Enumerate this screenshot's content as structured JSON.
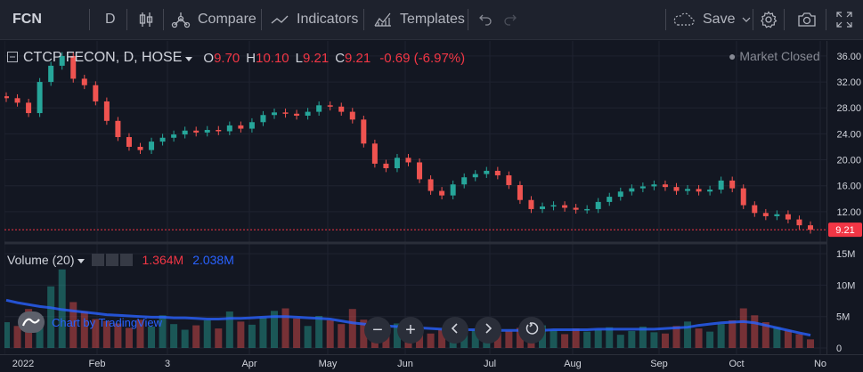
{
  "toolbar": {
    "symbol": "FCN",
    "interval": "D",
    "compare_label": "Compare",
    "indicators_label": "Indicators",
    "templates_label": "Templates",
    "save_label": "Save"
  },
  "legend": {
    "title": "CTCP FECON, D, HOSE",
    "open_label": "O",
    "open": "9.70",
    "high_label": "H",
    "high": "10.10",
    "low_label": "L",
    "low": "9.21",
    "close_label": "C",
    "close": "9.21",
    "change": "-0.69 (-6.97%)",
    "market_status": "Market Closed"
  },
  "volume_legend": {
    "title": "Volume (20)",
    "volume": "1.364M",
    "ma": "2.038M"
  },
  "watermark": "Chart by TradingView",
  "price_axis": {
    "ticks": [
      "36.00",
      "32.00",
      "28.00",
      "24.00",
      "20.00",
      "16.00",
      "12.00"
    ],
    "last_price": "9.21"
  },
  "volume_axis": {
    "ticks": [
      "15M",
      "10M",
      "5M",
      "0"
    ]
  },
  "time_axis": {
    "ticks": [
      "2022",
      "Feb",
      "3",
      "Apr",
      "May",
      "Jun",
      "Jul",
      "Aug",
      "Sep",
      "Oct",
      "No"
    ]
  },
  "colors": {
    "up": "#26a69a",
    "down": "#ef5350",
    "ma": "#2962ff",
    "bg": "#131722"
  },
  "chart_data": {
    "type": "candlestick",
    "title": "CTCP FECON, D, HOSE",
    "price_range": [
      8,
      37.5
    ],
    "volume_range": [
      0,
      16
    ],
    "volume_unit": "M",
    "months": [
      "2022",
      "Feb",
      "3",
      "Apr",
      "May",
      "Jun",
      "Jul",
      "Aug",
      "Sep",
      "Oct",
      "No"
    ],
    "close_series": [
      29.5,
      28.8,
      27.2,
      32,
      34.5,
      36,
      32.5,
      31.5,
      29,
      26,
      23.5,
      22,
      21.5,
      22.8,
      23.4,
      23.9,
      24.5,
      24.2,
      24.6,
      24.4,
      25.3,
      24.8,
      25.8,
      26.9,
      27.3,
      27.1,
      26.8,
      27.4,
      28.4,
      28.2,
      27.4,
      26.2,
      22.5,
      19.4,
      18.7,
      20.3,
      19.6,
      17,
      15.2,
      14.5,
      16.2,
      17.3,
      17.8,
      18.3,
      17.6,
      16.1,
      13.8,
      12.4,
      12.8,
      13,
      12.6,
      12.3,
      12.4,
      13.5,
      14.3,
      15.1,
      15.6,
      15.9,
      16.2,
      15.8,
      15.2,
      15.5,
      15.1,
      15.4,
      16.8,
      15.6,
      13,
      11.8,
      11.3,
      11.6,
      10.8,
      9.9,
      9.21
    ],
    "volume_series": [
      4.1,
      3.5,
      6.2,
      5.1,
      9.8,
      12.5,
      7.3,
      5.8,
      4.6,
      4.3,
      3.9,
      3.2,
      4.5,
      3.4,
      5.2,
      3.8,
      2.9,
      3.6,
      4.4,
      3.1,
      5.8,
      4.2,
      3.7,
      4.8,
      5.9,
      6.3,
      4.7,
      3.5,
      5.1,
      4.4,
      3.8,
      6.2,
      4.5,
      3.3,
      2.8,
      3.9,
      2.6,
      3.4,
      2.3,
      2.9,
      3.5,
      2.2,
      2.8,
      3.1,
      2.4,
      2.7,
      3.2,
      2.5,
      3.6,
      2.8,
      2.2,
      3.1,
      2.6,
      2.9,
      3.3,
      2.1,
      2.7,
      3.4,
      2.5,
      2.3,
      3.5,
      4.2,
      3.1,
      2.6,
      3.8,
      4.4,
      6.3,
      5.2,
      4.1,
      3.3,
      2.8,
      2.2,
      1.364
    ],
    "ma_series": [
      7.6,
      7.2,
      6.9,
      6.6,
      6.4,
      6.1,
      5.9,
      5.7,
      5.5,
      5.3,
      5.2,
      5.1,
      5,
      4.9,
      4.9,
      4.8,
      4.8,
      4.7,
      4.6,
      4.6,
      4.7,
      4.7,
      4.8,
      4.9,
      5,
      5,
      4.9,
      4.8,
      4.7,
      4.6,
      4.3,
      4,
      3.8,
      3.6,
      3.5,
      3.4,
      3.3,
      3.2,
      3.1,
      3,
      3,
      2.9,
      2.9,
      2.8,
      2.8,
      2.8,
      2.8,
      2.8,
      2.8,
      2.9,
      2.9,
      2.9,
      2.9,
      3,
      3,
      3,
      3,
      3,
      3,
      3.1,
      3.2,
      3.3,
      3.6,
      3.8,
      4,
      4.1,
      4.2,
      4,
      3.6,
      3.2,
      2.8,
      2.4,
      2.038
    ]
  }
}
